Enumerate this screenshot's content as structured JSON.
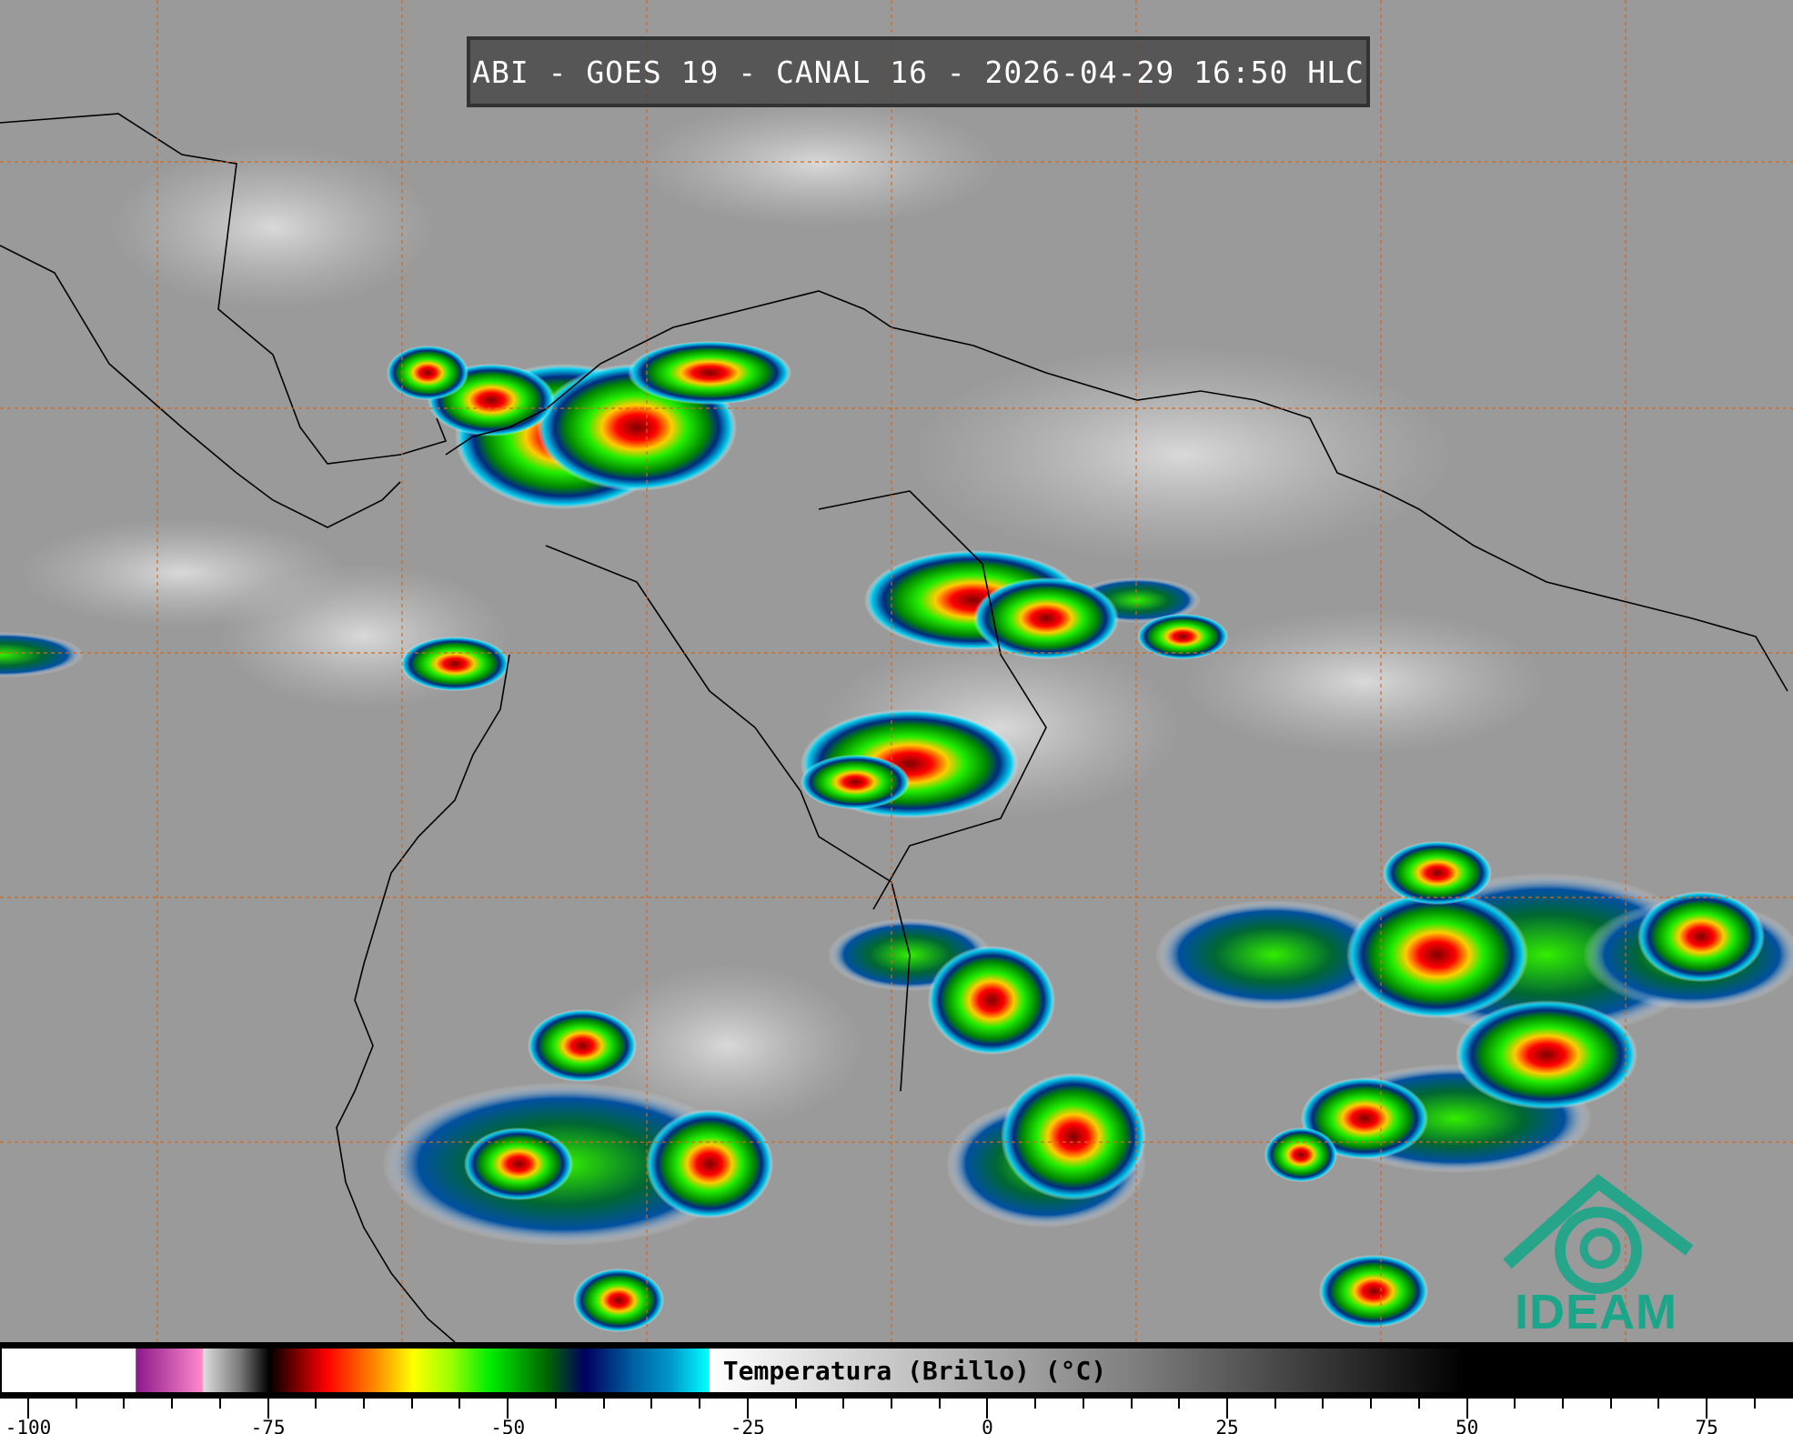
{
  "title": "ABI - GOES 19 - CANAL 16 - 2026-04-29 16:50 HLC",
  "colorbar": {
    "label": "Temperatura (Brillo) (°C)",
    "range": [
      -103,
      85
    ],
    "ticks": [
      "-100",
      "-75",
      "-50",
      "-25",
      "0",
      "25",
      "50",
      "75"
    ],
    "tick_values": [
      -100,
      -75,
      -50,
      -25,
      0,
      25,
      50,
      75
    ],
    "minor_step": 5,
    "colors": {
      "white": "#ffffff",
      "purple": "#8b1a8b",
      "pink": "#ff88cc",
      "black": "#000000",
      "red": "#ff0000",
      "orange": "#ff8800",
      "yellow": "#ffff00",
      "green": "#00ee00",
      "navy": "#000060",
      "blue": "#0060a0",
      "cyan": "#00ffff"
    }
  },
  "map": {
    "grid_color": "#d2691e",
    "background_color": "#9a9a9a"
  },
  "logo": {
    "text": "IDEAM",
    "color": "#1aa68a"
  }
}
